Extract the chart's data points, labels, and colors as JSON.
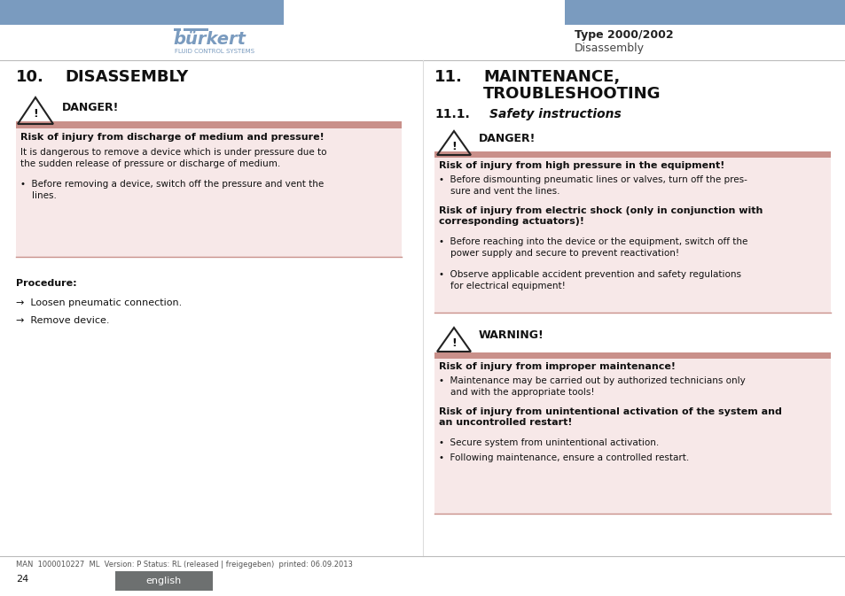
{
  "bg_color": "#ffffff",
  "header_bar_color": "#7a9bbf",
  "danger_bg": "#f7e8e8",
  "danger_bar_color": "#c9908a",
  "warning_bg": "#f7e8e8",
  "warning_bar_color": "#c9908a",
  "footer_text": "MAN  1000010227  ML  Version: P Status: RL (released | freigegeben)  printed: 06.09.2013",
  "page_num": "24",
  "english_bg": "#6d7070",
  "english_text": "english",
  "header_type_text": "Type 2000/2002",
  "header_sub_text": "Disassembly"
}
